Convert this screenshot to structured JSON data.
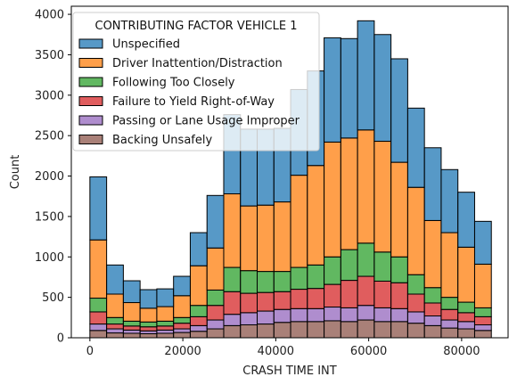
{
  "chart_data": {
    "type": "bar",
    "stacked": true,
    "xlabel": "CRASH TIME INT",
    "ylabel": "Count",
    "xlim": [
      -4000,
      90000
    ],
    "ylim": [
      0,
      4100
    ],
    "xticks": [
      0,
      20000,
      40000,
      60000,
      80000
    ],
    "xtick_labels": [
      "0",
      "20000",
      "40000",
      "60000",
      "80000"
    ],
    "yticks": [
      0,
      500,
      1000,
      1500,
      2000,
      2500,
      3000,
      3500,
      4000
    ],
    "ytick_labels": [
      "0",
      "500",
      "1000",
      "1500",
      "2000",
      "2500",
      "3000",
      "3500",
      "4000"
    ],
    "bin_edges": [
      0,
      3600,
      7200,
      10800,
      14400,
      18000,
      21600,
      25200,
      28800,
      32400,
      36000,
      39600,
      43200,
      46800,
      50400,
      54000,
      57600,
      61200,
      64800,
      68400,
      72000,
      75600,
      79200,
      82800,
      86400
    ],
    "legend": {
      "title": "CONTRIBUTING FACTOR VEHICLE 1",
      "placement": "upper-left"
    },
    "series": [
      {
        "name": "Backing Unsafely",
        "color": "#8c564b",
        "values": [
          90,
          60,
          55,
          50,
          55,
          65,
          80,
          110,
          150,
          160,
          170,
          190,
          200,
          200,
          210,
          200,
          220,
          200,
          200,
          180,
          150,
          120,
          110,
          90
        ]
      },
      {
        "name": "Passing or Lane Usage Improper",
        "color": "#9467bd",
        "values": [
          80,
          50,
          40,
          35,
          40,
          45,
          70,
          110,
          140,
          150,
          160,
          160,
          160,
          160,
          170,
          170,
          180,
          170,
          160,
          140,
          120,
          100,
          90,
          70
        ]
      },
      {
        "name": "Failure to Yield Right-of-Way",
        "color": "#d62728",
        "values": [
          150,
          60,
          50,
          50,
          50,
          70,
          110,
          180,
          280,
          240,
          230,
          220,
          240,
          250,
          280,
          340,
          360,
          330,
          320,
          220,
          160,
          130,
          110,
          100
        ]
      },
      {
        "name": "Following Too Closely",
        "color": "#2ca02c",
        "values": [
          170,
          80,
          60,
          60,
          60,
          70,
          140,
          190,
          300,
          280,
          260,
          250,
          270,
          290,
          340,
          380,
          410,
          360,
          320,
          240,
          190,
          150,
          130,
          110
        ]
      },
      {
        "name": "Driver Inattention/Distraction",
        "color": "#ff7f0e",
        "values": [
          720,
          290,
          230,
          170,
          180,
          270,
          490,
          520,
          910,
          800,
          820,
          860,
          1140,
          1230,
          1420,
          1380,
          1400,
          1370,
          1170,
          1080,
          830,
          800,
          680,
          540
        ]
      },
      {
        "name": "Unspecified",
        "color": "#1f77b4",
        "values": [
          780,
          360,
          270,
          230,
          220,
          240,
          410,
          650,
          980,
          950,
          940,
          910,
          1060,
          1170,
          1290,
          1230,
          1350,
          1320,
          1280,
          980,
          900,
          780,
          680,
          530
        ]
      }
    ]
  }
}
